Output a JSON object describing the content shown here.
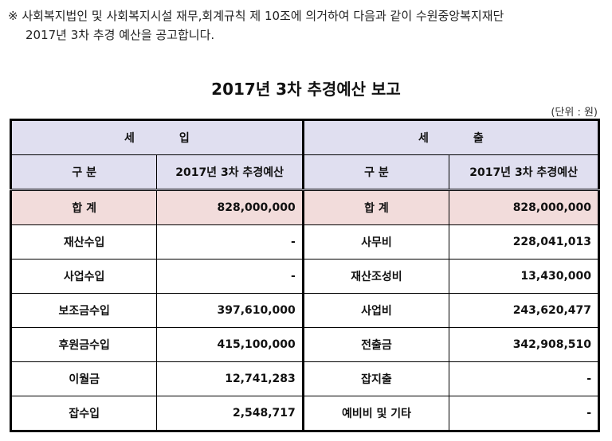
{
  "notice": {
    "line1": "※ 사회복지법인 및 사회복지시설 재무,회계규칙 제 10조에 의거하여 다음과 같이 수원중앙복지재단",
    "line2": "2017년 3차 추경 예산을 공고합니다."
  },
  "title": "2017년 3차 추경예산 보고",
  "unit": "(단위 : 원)",
  "table": {
    "income_header": [
      "세",
      "입"
    ],
    "expense_header": [
      "세",
      "출"
    ],
    "col_category": "구 분",
    "col_budget": "2017년 3차 추경예산",
    "total": {
      "income_label": "합 계",
      "income_value": "828,000,000",
      "expense_label": "합 계",
      "expense_value": "828,000,000"
    },
    "rows": [
      {
        "income_label": "재산수입",
        "income_value": "-",
        "expense_label": "사무비",
        "expense_value": "228,041,013"
      },
      {
        "income_label": "사업수입",
        "income_value": "-",
        "expense_label": "재산조성비",
        "expense_value": "13,430,000"
      },
      {
        "income_label": "보조금수입",
        "income_value": "397,610,000",
        "expense_label": "사업비",
        "expense_value": "243,620,477"
      },
      {
        "income_label": "후원금수입",
        "income_value": "415,100,000",
        "expense_label": "전출금",
        "expense_value": "342,908,510"
      },
      {
        "income_label": "이월금",
        "income_value": "12,741,283",
        "expense_label": "잡지출",
        "expense_value": "-"
      },
      {
        "income_label": "잡수입",
        "income_value": "2,548,717",
        "expense_label": "예비비 및 기타",
        "expense_value": "-"
      }
    ]
  },
  "colors": {
    "header_bg": "#e0dff0",
    "total_bg": "#f2dcdb",
    "border": "#000000"
  }
}
